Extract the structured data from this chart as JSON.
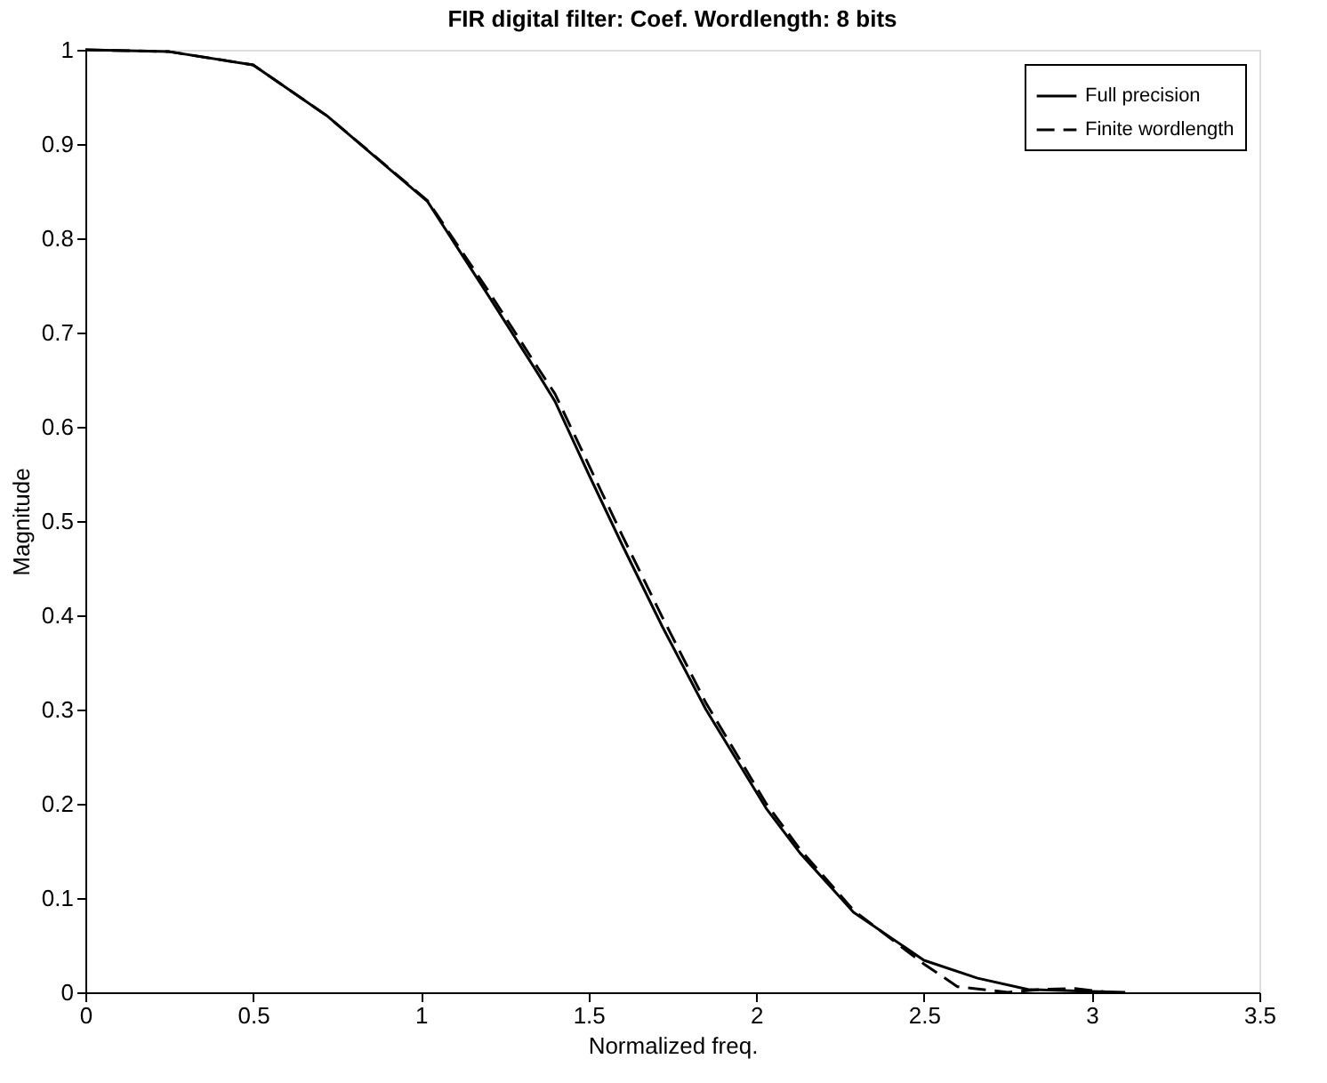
{
  "chart_data": {
    "type": "line",
    "title": "FIR digital filter: Coef. Wordlength: 8 bits",
    "xlabel": "Normalized freq.",
    "ylabel": "Magnitude",
    "xlim": [
      0,
      3.5
    ],
    "xticks": [
      0,
      0.5,
      1,
      1.5,
      2,
      2.5,
      3,
      3.5
    ],
    "ylim": [
      0,
      1
    ],
    "yticks": [
      0,
      0.1,
      0.2,
      0.3,
      0.4,
      0.5,
      0.6,
      0.7,
      0.8,
      0.9,
      1
    ],
    "grid": false,
    "legend": "top right",
    "series": [
      {
        "name": "Full precision",
        "color": "#000000",
        "line_style": "solid",
        "x": [
          0,
          0.25,
          0.5,
          0.72,
          1.02,
          1.2,
          1.35,
          1.4,
          1.5,
          1.6,
          1.72,
          1.85,
          2.03,
          2.13,
          2.29,
          2.5,
          2.66,
          2.81,
          3.0,
          3.1
        ],
        "values": [
          1.0,
          0.998,
          0.984,
          0.93,
          0.839,
          0.74,
          0.656,
          0.627,
          0.55,
          0.475,
          0.388,
          0.3,
          0.195,
          0.148,
          0.085,
          0.034,
          0.015,
          0.003,
          0.001,
          0
        ]
      },
      {
        "name": "Finite wordlength",
        "color": "#000000",
        "line_style": "dashed",
        "x": [
          0,
          0.25,
          0.5,
          0.72,
          1.02,
          1.2,
          1.35,
          1.4,
          1.5,
          1.6,
          1.72,
          1.85,
          2.03,
          2.13,
          2.29,
          2.5,
          2.6,
          2.75,
          2.85,
          2.95,
          3.05
        ],
        "values": [
          1.0,
          0.998,
          0.984,
          0.93,
          0.84,
          0.745,
          0.662,
          0.635,
          0.56,
          0.485,
          0.398,
          0.307,
          0.2,
          0.152,
          0.087,
          0.03,
          0.006,
          0,
          0.003,
          0.004,
          0
        ]
      }
    ]
  }
}
